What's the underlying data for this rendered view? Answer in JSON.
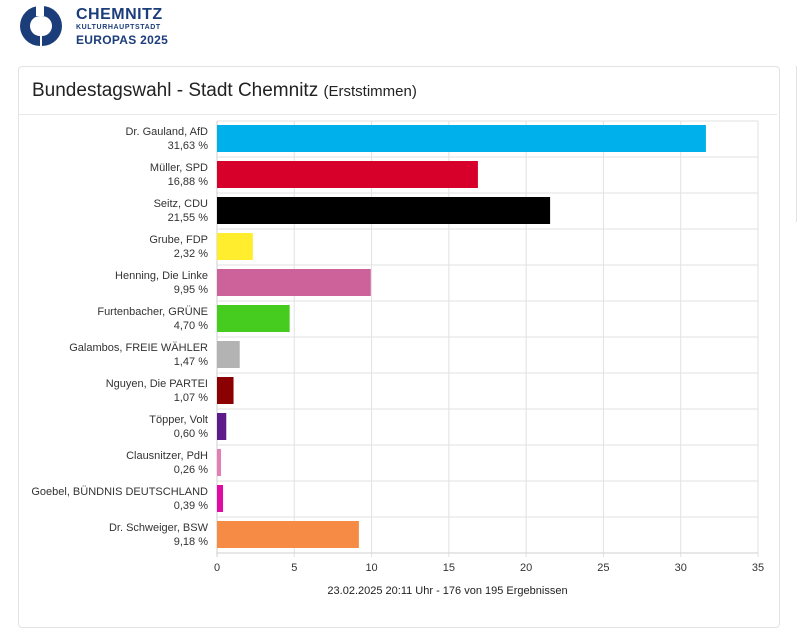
{
  "brand": {
    "line1": "CHEMNITZ",
    "line2": "KULTURHAUPTSTADT",
    "line3": "EUROPAS 2025",
    "color": "#1b3d7a"
  },
  "header": {
    "title": "Bundestagswahl - Stadt Chemnitz",
    "subtitle": "(Erststimmen)"
  },
  "chart_data": {
    "type": "bar",
    "orientation": "horizontal",
    "categories": [
      {
        "name": "Dr. Gauland, AfD",
        "pct": "31,63 %"
      },
      {
        "name": "Müller, SPD",
        "pct": "16,88 %"
      },
      {
        "name": "Seitz, CDU",
        "pct": "21,55 %"
      },
      {
        "name": "Grube, FDP",
        "pct": "2,32 %"
      },
      {
        "name": "Henning, Die Linke",
        "pct": "9,95 %"
      },
      {
        "name": "Furtenbacher, GRÜNE",
        "pct": "4,70 %"
      },
      {
        "name": "Galambos, FREIE WÄHLER",
        "pct": "1,47 %"
      },
      {
        "name": "Nguyen, Die PARTEI",
        "pct": "1,07 %"
      },
      {
        "name": "Töpper, Volt",
        "pct": "0,60 %"
      },
      {
        "name": "Clausnitzer, PdH",
        "pct": "0,26 %"
      },
      {
        "name": "Goebel, BÜNDNIS DEUTSCHLAND",
        "pct": "0,39 %"
      },
      {
        "name": "Dr. Schweiger, BSW",
        "pct": "9,18 %"
      }
    ],
    "values": [
      31.63,
      16.88,
      21.55,
      2.32,
      9.95,
      4.7,
      1.47,
      1.07,
      0.6,
      0.26,
      0.39,
      9.18
    ],
    "colors": [
      "#00b0ea",
      "#d6002a",
      "#000000",
      "#ffed2e",
      "#cc6299",
      "#46cc1e",
      "#b3b3b3",
      "#8b0000",
      "#5c1a8b",
      "#e37fb6",
      "#e00ba4",
      "#f58b44"
    ],
    "xlim": [
      0,
      35
    ],
    "xticks": [
      "0",
      "5",
      "10",
      "15",
      "20",
      "25",
      "30",
      "35"
    ],
    "grid": true,
    "footer": "23.02.2025 20:11 Uhr - 176 von 195 Ergebnissen"
  }
}
